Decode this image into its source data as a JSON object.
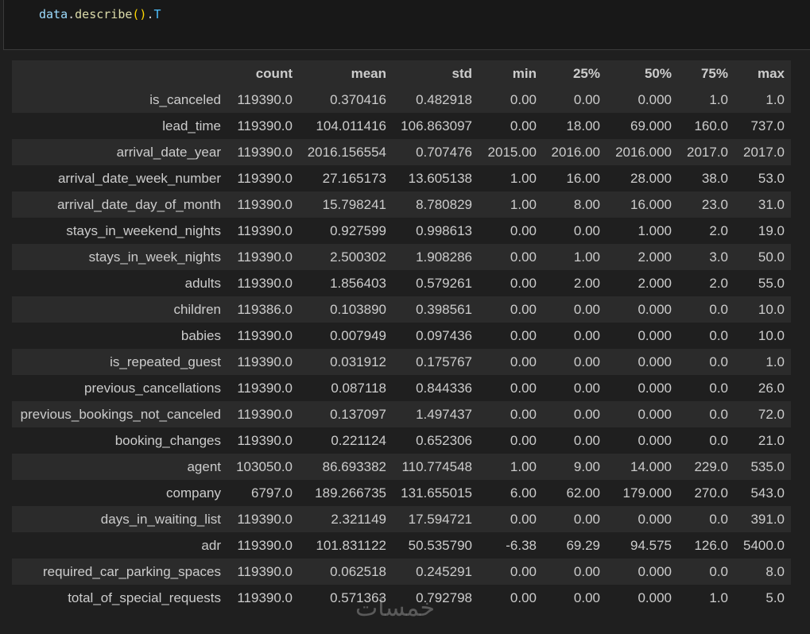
{
  "code": [
    "data",
    ".",
    "describe",
    "()",
    ".",
    "T"
  ],
  "table": {
    "columns": [
      "count",
      "mean",
      "std",
      "min",
      "25%",
      "50%",
      "75%",
      "max"
    ],
    "rows": [
      [
        "is_canceled",
        "119390.0",
        "0.370416",
        "0.482918",
        "0.00",
        "0.00",
        "0.000",
        "1.0",
        "1.0"
      ],
      [
        "lead_time",
        "119390.0",
        "104.011416",
        "106.863097",
        "0.00",
        "18.00",
        "69.000",
        "160.0",
        "737.0"
      ],
      [
        "arrival_date_year",
        "119390.0",
        "2016.156554",
        "0.707476",
        "2015.00",
        "2016.00",
        "2016.000",
        "2017.0",
        "2017.0"
      ],
      [
        "arrival_date_week_number",
        "119390.0",
        "27.165173",
        "13.605138",
        "1.00",
        "16.00",
        "28.000",
        "38.0",
        "53.0"
      ],
      [
        "arrival_date_day_of_month",
        "119390.0",
        "15.798241",
        "8.780829",
        "1.00",
        "8.00",
        "16.000",
        "23.0",
        "31.0"
      ],
      [
        "stays_in_weekend_nights",
        "119390.0",
        "0.927599",
        "0.998613",
        "0.00",
        "0.00",
        "1.000",
        "2.0",
        "19.0"
      ],
      [
        "stays_in_week_nights",
        "119390.0",
        "2.500302",
        "1.908286",
        "0.00",
        "1.00",
        "2.000",
        "3.0",
        "50.0"
      ],
      [
        "adults",
        "119390.0",
        "1.856403",
        "0.579261",
        "0.00",
        "2.00",
        "2.000",
        "2.0",
        "55.0"
      ],
      [
        "children",
        "119386.0",
        "0.103890",
        "0.398561",
        "0.00",
        "0.00",
        "0.000",
        "0.0",
        "10.0"
      ],
      [
        "babies",
        "119390.0",
        "0.007949",
        "0.097436",
        "0.00",
        "0.00",
        "0.000",
        "0.0",
        "10.0"
      ],
      [
        "is_repeated_guest",
        "119390.0",
        "0.031912",
        "0.175767",
        "0.00",
        "0.00",
        "0.000",
        "0.0",
        "1.0"
      ],
      [
        "previous_cancellations",
        "119390.0",
        "0.087118",
        "0.844336",
        "0.00",
        "0.00",
        "0.000",
        "0.0",
        "26.0"
      ],
      [
        "previous_bookings_not_canceled",
        "119390.0",
        "0.137097",
        "1.497437",
        "0.00",
        "0.00",
        "0.000",
        "0.0",
        "72.0"
      ],
      [
        "booking_changes",
        "119390.0",
        "0.221124",
        "0.652306",
        "0.00",
        "0.00",
        "0.000",
        "0.0",
        "21.0"
      ],
      [
        "agent",
        "103050.0",
        "86.693382",
        "110.774548",
        "1.00",
        "9.00",
        "14.000",
        "229.0",
        "535.0"
      ],
      [
        "company",
        "6797.0",
        "189.266735",
        "131.655015",
        "6.00",
        "62.00",
        "179.000",
        "270.0",
        "543.0"
      ],
      [
        "days_in_waiting_list",
        "119390.0",
        "2.321149",
        "17.594721",
        "0.00",
        "0.00",
        "0.000",
        "0.0",
        "391.0"
      ],
      [
        "adr",
        "119390.0",
        "101.831122",
        "50.535790",
        "-6.38",
        "69.29",
        "94.575",
        "126.0",
        "5400.0"
      ],
      [
        "required_car_parking_spaces",
        "119390.0",
        "0.062518",
        "0.245291",
        "0.00",
        "0.00",
        "0.000",
        "0.0",
        "8.0"
      ],
      [
        "total_of_special_requests",
        "119390.0",
        "0.571363",
        "0.792798",
        "0.00",
        "0.00",
        "0.000",
        "1.0",
        "5.0"
      ]
    ]
  },
  "watermark": "خمسات"
}
